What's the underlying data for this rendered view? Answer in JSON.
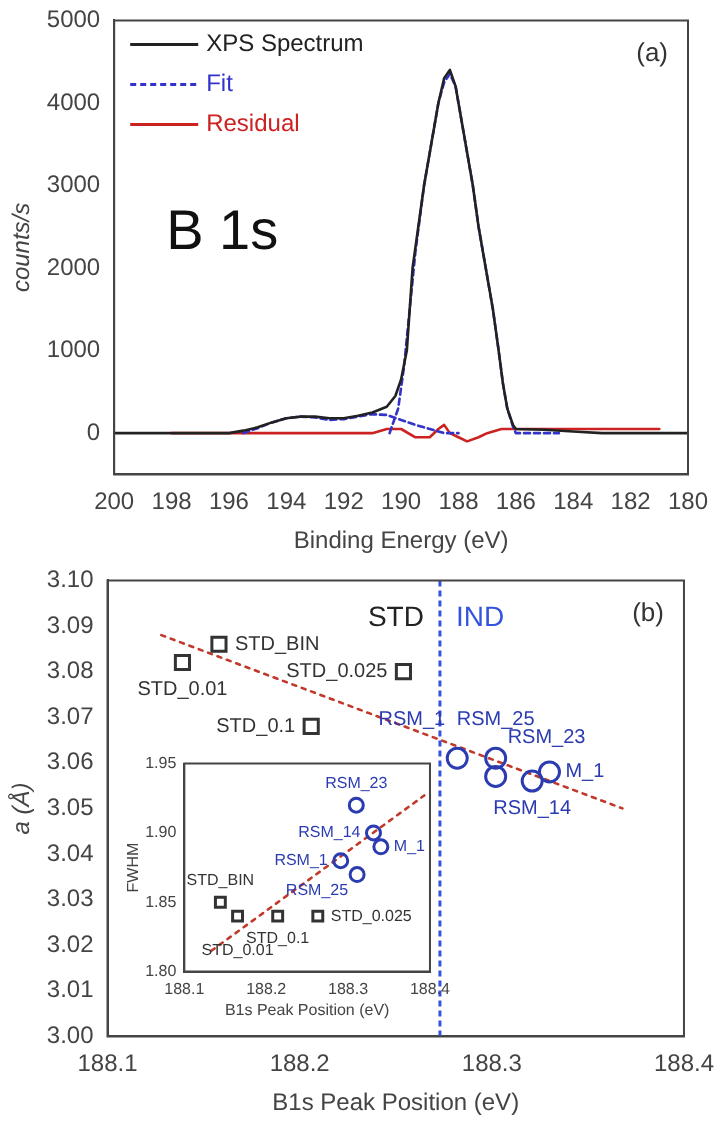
{
  "chart_data": [
    {
      "type": "line",
      "xlabel": "Binding Energy (eV)",
      "ylabel": "counts/s",
      "xlim": [
        200,
        180
      ],
      "xticks": [
        200,
        198,
        196,
        194,
        192,
        190,
        188,
        186,
        184,
        182,
        180
      ],
      "ylim": [
        -500,
        5000
      ],
      "yticks": [
        0,
        1000,
        2000,
        3000,
        4000,
        5000
      ],
      "legend": "top left",
      "annotations": [
        "(a)",
        "B 1s"
      ],
      "series": [
        {
          "name": "XPS Spectrum",
          "color": "#222222",
          "marker": "none",
          "line_style": "solid",
          "x": [
            200,
            199,
            198,
            197,
            196,
            195.5,
            195,
            194.5,
            194,
            193.5,
            193,
            192.5,
            192,
            191.5,
            191,
            190.5,
            190.2,
            190,
            189.8,
            189.6,
            189.4,
            189.2,
            189,
            188.7,
            188.5,
            188.3,
            188.1,
            188,
            187.8,
            187.5,
            187.3,
            187.05,
            186.8,
            186.6,
            186.45,
            186.3,
            186.1,
            186,
            185,
            184,
            183,
            182,
            181,
            180
          ],
          "values": [
            0,
            0,
            0,
            0,
            0,
            30,
            70,
            130,
            180,
            200,
            200,
            180,
            180,
            210,
            250,
            320,
            450,
            650,
            1000,
            2000,
            2500,
            3000,
            3400,
            4000,
            4300,
            4400,
            4200,
            4000,
            3600,
            3000,
            2500,
            2000,
            1500,
            1000,
            600,
            300,
            100,
            50,
            40,
            20,
            0,
            0,
            0,
            0
          ]
        },
        {
          "name": "Fit",
          "color": "#3333cc",
          "marker": "none",
          "line_style": "dashed",
          "x": [
            190.4,
            190.1,
            189.9,
            189.7,
            189.5,
            189.2,
            189,
            188.7,
            188.5,
            188.3,
            188.1,
            188,
            187.8,
            187.5,
            187.3,
            187.05,
            186.8,
            186.6,
            186.45,
            186.3,
            186.1,
            186,
            184.5
          ],
          "values": [
            0,
            300,
            800,
            1500,
            2200,
            3000,
            3400,
            4000,
            4250,
            4350,
            4200,
            4000,
            3600,
            3000,
            2500,
            2000,
            1500,
            1000,
            600,
            300,
            80,
            0,
            0
          ]
        },
        {
          "color": "#3333cc",
          "marker": "none",
          "line_style": "dashed",
          "x": [
            195.5,
            195,
            194.5,
            194,
            193.5,
            193,
            192.5,
            192,
            191.5,
            191,
            190.5,
            190,
            189.5,
            189,
            188.5,
            188
          ],
          "values": [
            0,
            60,
            130,
            180,
            200,
            190,
            160,
            170,
            200,
            230,
            220,
            160,
            100,
            50,
            0,
            0
          ]
        },
        {
          "name": "Residual",
          "color": "#cc2222",
          "marker": "none",
          "line_style": "solid",
          "x": [
            198,
            197,
            196,
            195,
            194,
            193,
            192,
            191,
            190.5,
            190,
            189.5,
            189,
            188.7,
            188.5,
            188.3,
            188,
            187.7,
            187.3,
            187,
            186.5,
            186,
            185,
            184,
            183,
            182,
            181
          ],
          "values": [
            0,
            0,
            0,
            0,
            0,
            0,
            0,
            0,
            50,
            50,
            -50,
            -50,
            50,
            100,
            0,
            -50,
            -100,
            -50,
            0,
            50,
            50,
            50,
            50,
            50,
            50,
            50
          ]
        }
      ]
    },
    {
      "type": "scatter",
      "xlabel": "B1s Peak Position (eV)",
      "ylabel": "a (Å)",
      "xlim": [
        188.1,
        188.4
      ],
      "xticks": [
        188.1,
        188.2,
        188.3,
        188.4
      ],
      "ylim": [
        3.0,
        3.1
      ],
      "yticks": [
        {
          "value": 3.0,
          "label": "3.00"
        },
        {
          "value": 3.01,
          "label": "3.01"
        },
        {
          "value": 3.02,
          "label": "3.02"
        },
        {
          "value": 3.03,
          "label": "3.03"
        },
        {
          "value": 3.04,
          "label": "3.04"
        },
        {
          "value": 3.05,
          "label": "3.05"
        },
        {
          "value": 3.06,
          "label": "3.06"
        },
        {
          "value": 3.07,
          "label": "3.07"
        },
        {
          "value": 3.08,
          "label": "3.08"
        },
        {
          "value": 3.09,
          "label": "3.09"
        },
        {
          "value": 3.1,
          "label": "3.10"
        }
      ],
      "ref_lines": [
        {
          "axis": "x",
          "value": 188.273,
          "label": "IND",
          "color": "#3355dd",
          "line_style": "dashed"
        }
      ],
      "annotations": [
        "(b)",
        "STD",
        {
          "text": "STD_BIN",
          "x": 188.158,
          "y": 3.086
        },
        {
          "text": "STD_0.01",
          "x": 188.139,
          "y": 3.082
        },
        {
          "text": "STD_0.025",
          "x": 188.254,
          "y": 3.08
        },
        {
          "text": "STD_0.1",
          "x": 188.206,
          "y": 3.068
        },
        {
          "text": "M_1",
          "x": 188.33,
          "y": 3.058
        },
        {
          "text": "RSM_14",
          "x": 188.321,
          "y": 3.056
        },
        {
          "text": "RSM_23",
          "x": 188.302,
          "y": 3.057
        },
        {
          "text": "RSM_25",
          "x": 188.302,
          "y": 3.061
        },
        {
          "text": "RSM_1",
          "x": 188.282,
          "y": 3.061
        }
      ],
      "series": [
        {
          "color": "#333333",
          "marker": "square",
          "x": [
            188.139,
            188.158,
            188.206,
            188.254
          ],
          "values": [
            3.082,
            3.086,
            3.068,
            3.08
          ]
        },
        {
          "color": "#2b3bb0",
          "marker": "circle",
          "x": [
            188.282,
            188.302,
            188.302,
            188.321,
            188.33
          ],
          "values": [
            3.061,
            3.061,
            3.057,
            3.056,
            3.058
          ]
        },
        {
          "type": "line",
          "color": "#c0392b",
          "marker": "none",
          "line_style": "dotted",
          "x": [
            188.128,
            188.368
          ],
          "values": [
            3.088,
            3.05
          ]
        }
      ]
    },
    {
      "type": "scatter",
      "xlabel": "B1s Peak Position (eV)",
      "ylabel": "FWHM",
      "xlim": [
        188.1,
        188.4
      ],
      "xticks": [
        188.1,
        188.2,
        188.3,
        188.4
      ],
      "ylim": [
        1.8,
        1.95
      ],
      "yticks": [
        {
          "value": 1.8,
          "label": "1.80"
        },
        {
          "value": 1.85,
          "label": "1.85"
        },
        {
          "value": 1.9,
          "label": "1.90"
        },
        {
          "value": 1.95,
          "label": "1.95"
        }
      ],
      "annotations": [
        {
          "text": "STD_BIN",
          "x": 188.144,
          "y": 1.85
        },
        {
          "text": "STD_0.1",
          "x": 188.214,
          "y": 1.84
        },
        {
          "text": "STD_0.01",
          "x": 188.165,
          "y": 1.84
        },
        {
          "text": "STD_0.025",
          "x": 188.263,
          "y": 1.84
        },
        {
          "text": "RSM_23",
          "x": 188.31,
          "y": 1.92
        },
        {
          "text": "RSM_14",
          "x": 188.331,
          "y": 1.9
        },
        {
          "text": "M_1",
          "x": 188.34,
          "y": 1.89
        },
        {
          "text": "RSM_1",
          "x": 188.291,
          "y": 1.88
        },
        {
          "text": "RSM_25",
          "x": 188.311,
          "y": 1.87
        }
      ],
      "series": [
        {
          "color": "#333333",
          "marker": "square",
          "x": [
            188.144,
            188.165,
            188.214,
            188.263
          ],
          "values": [
            1.85,
            1.84,
            1.84,
            1.84
          ]
        },
        {
          "color": "#2b3bb0",
          "marker": "circle",
          "x": [
            188.31,
            188.331,
            188.34,
            188.291,
            188.311
          ],
          "values": [
            1.92,
            1.9,
            1.89,
            1.88,
            1.87
          ]
        },
        {
          "type": "line",
          "color": "#c0392b",
          "marker": "none",
          "line_style": "dotted",
          "x": [
            188.133,
            188.393
          ],
          "values": [
            1.815,
            1.927
          ]
        }
      ]
    }
  ]
}
